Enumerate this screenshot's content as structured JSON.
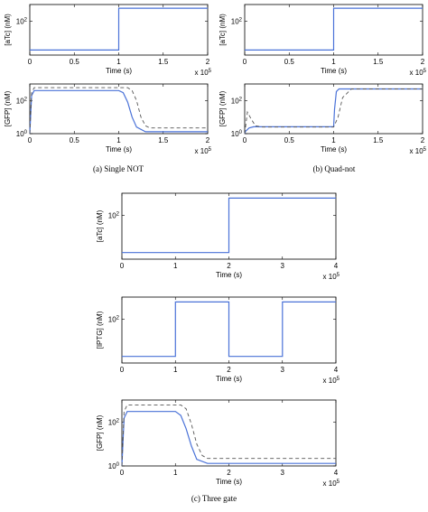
{
  "subfigures": [
    {
      "caption": "(a)  Single NOT"
    },
    {
      "caption": "(b)  Quad-not"
    },
    {
      "caption": "(c)  Three gate"
    }
  ],
  "colors": {
    "simulated": "#4a72d8",
    "reference": "#555555"
  },
  "chart_data": [
    {
      "type": "line",
      "panel": "a-top",
      "xlabel": "Time (s)",
      "ylabel": "[aTc] (nM)",
      "xlim": [
        0,
        2
      ],
      "x_multiplier": "x 10^5",
      "x_ticks": [
        "0",
        "0.5",
        "1",
        "1.5",
        "2"
      ],
      "y_scale": "log",
      "y_ticks": [
        "10^2"
      ],
      "grid": false,
      "series": [
        {
          "style": "solid",
          "x": [
            0,
            1,
            1,
            2
          ],
          "y": [
            2,
            2,
            600,
            600
          ]
        }
      ]
    },
    {
      "type": "line",
      "panel": "a-bottom",
      "xlabel": "Time (s)",
      "ylabel": "[GFP] (nM)",
      "xlim": [
        0,
        2
      ],
      "x_multiplier": "x 10^5",
      "x_ticks": [
        "0",
        "0.5",
        "1",
        "1.5",
        "2"
      ],
      "y_scale": "log",
      "ylim": [
        1,
        1000
      ],
      "y_ticks": [
        "10^0",
        "10^2"
      ],
      "grid": false,
      "series": [
        {
          "style": "solid",
          "x": [
            0,
            0.02,
            0.05,
            1.0,
            1.05,
            1.1,
            1.15,
            1.2,
            1.3,
            2.0
          ],
          "y": [
            1,
            200,
            400,
            400,
            300,
            80,
            10,
            2.5,
            1.3,
            1.3
          ]
        },
        {
          "style": "dashed",
          "x": [
            0,
            0.02,
            0.05,
            1.1,
            1.15,
            1.2,
            1.25,
            1.3,
            1.35,
            2.0
          ],
          "y": [
            1,
            300,
            600,
            600,
            400,
            100,
            10,
            3,
            2.2,
            2.2
          ]
        }
      ]
    },
    {
      "type": "line",
      "panel": "b-top",
      "xlabel": "Time (s)",
      "ylabel": "[aTc] (nM)",
      "xlim": [
        0,
        2
      ],
      "x_multiplier": "x 10^5",
      "x_ticks": [
        "0",
        "0.5",
        "1",
        "1.5",
        "2"
      ],
      "y_scale": "log",
      "y_ticks": [
        "10^2"
      ],
      "grid": false,
      "series": [
        {
          "style": "solid",
          "x": [
            0,
            1,
            1,
            2
          ],
          "y": [
            2,
            2,
            600,
            600
          ]
        }
      ]
    },
    {
      "type": "line",
      "panel": "b-bottom",
      "xlabel": "Time (s)",
      "ylabel": "[GFP] (nM)",
      "xlim": [
        0,
        2
      ],
      "x_multiplier": "x 10^5",
      "x_ticks": [
        "0",
        "0.5",
        "1",
        "1.5",
        "2"
      ],
      "y_scale": "log",
      "ylim": [
        1,
        1000
      ],
      "y_ticks": [
        "10^0",
        "10^2"
      ],
      "grid": false,
      "series": [
        {
          "style": "solid",
          "x": [
            0,
            0.01,
            0.05,
            0.1,
            1.0,
            1.01,
            1.03,
            1.06,
            2.0
          ],
          "y": [
            1,
            1.4,
            2.2,
            2.6,
            2.6,
            30,
            350,
            500,
            500
          ]
        },
        {
          "style": "dashed",
          "x": [
            0,
            0.03,
            0.07,
            0.12,
            0.2,
            1.0,
            1.05,
            1.1,
            1.2,
            2.0
          ],
          "y": [
            1,
            20,
            8,
            3,
            2.5,
            2.5,
            10,
            150,
            500,
            500
          ]
        }
      ]
    },
    {
      "type": "line",
      "panel": "c-1",
      "xlabel": "Time (s)",
      "ylabel": "[aTc] (nM)",
      "xlim": [
        0,
        4
      ],
      "x_multiplier": "x 10^5",
      "x_ticks": [
        "0",
        "1",
        "2",
        "3",
        "4"
      ],
      "y_scale": "log",
      "y_ticks": [
        "10^2"
      ],
      "grid": false,
      "series": [
        {
          "style": "solid",
          "x": [
            0,
            2,
            2,
            4
          ],
          "y": [
            2,
            2,
            600,
            600
          ]
        }
      ]
    },
    {
      "type": "line",
      "panel": "c-2",
      "xlabel": "Time (s)",
      "ylabel": "[IPTG] (nM)",
      "xlim": [
        0,
        4
      ],
      "x_multiplier": "x 10^5",
      "x_ticks": [
        "0",
        "1",
        "2",
        "3",
        "4"
      ],
      "y_scale": "log",
      "y_ticks": [
        "10^2"
      ],
      "grid": false,
      "series": [
        {
          "style": "solid",
          "x": [
            0,
            1,
            1,
            2,
            2,
            3,
            3,
            4
          ],
          "y": [
            2,
            2,
            600,
            600,
            2,
            2,
            600,
            600
          ]
        }
      ]
    },
    {
      "type": "line",
      "panel": "c-3",
      "xlabel": "Time (s)",
      "ylabel": "[GFP] (nM)",
      "xlim": [
        0,
        4
      ],
      "x_multiplier": "x 10^5",
      "x_ticks": [
        "0",
        "1",
        "2",
        "3",
        "4"
      ],
      "y_scale": "log",
      "ylim": [
        1,
        1000
      ],
      "y_ticks": [
        "10^0",
        "10^2"
      ],
      "grid": false,
      "series": [
        {
          "style": "solid",
          "x": [
            0,
            0.04,
            0.1,
            1.0,
            1.1,
            1.2,
            1.3,
            1.4,
            1.6,
            4.0
          ],
          "y": [
            1,
            150,
            300,
            300,
            200,
            50,
            8,
            2,
            1.3,
            1.3
          ]
        },
        {
          "style": "dashed",
          "x": [
            0,
            0.04,
            0.1,
            1.1,
            1.2,
            1.3,
            1.4,
            1.5,
            1.6,
            4.0
          ],
          "y": [
            1,
            300,
            600,
            600,
            400,
            80,
            10,
            3,
            2.2,
            2.2
          ]
        }
      ]
    }
  ]
}
